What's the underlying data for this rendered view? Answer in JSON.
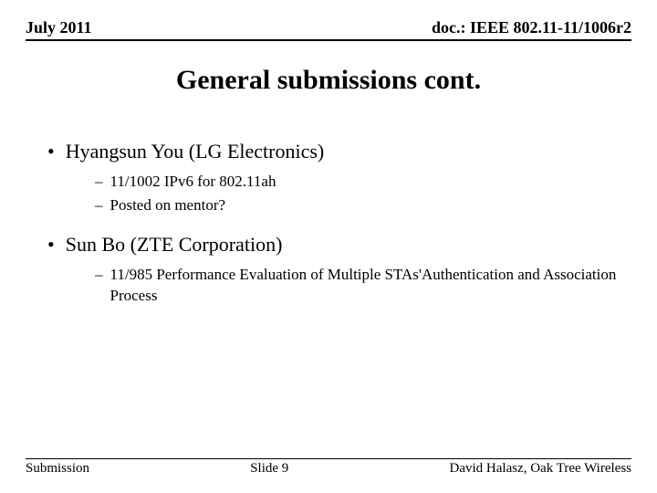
{
  "header": {
    "left": "July 2011",
    "right": "doc.: IEEE 802.11-11/1006r2"
  },
  "title": "General submissions cont.",
  "items": [
    {
      "label": "Hyangsun You (LG Electronics)",
      "subs": [
        "11/1002 IPv6 for 802.11ah",
        "Posted on mentor?"
      ]
    },
    {
      "label": "Sun Bo (ZTE Corporation)",
      "subs": [
        "11/985 Performance Evaluation of Multiple STAs'Authentication and Association Process"
      ]
    }
  ],
  "footer": {
    "left": "Submission",
    "center": "Slide 9",
    "right": "David Halasz, Oak Tree Wireless"
  }
}
